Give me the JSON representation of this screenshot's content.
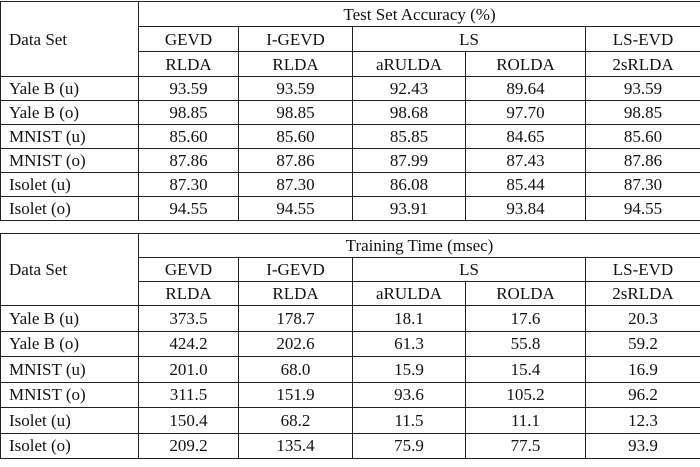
{
  "tables": [
    {
      "title": "Test Set Accuracy (%)",
      "row_header": "Data Set",
      "groups": [
        "GEVD",
        "I-GEVD",
        "LS",
        "LS-EVD"
      ],
      "methods": [
        "RLDA",
        "RLDA",
        "aRULDA",
        "ROLDA",
        "2sRLDA"
      ],
      "rows": [
        {
          "label": "Yale B (u)",
          "values": [
            "93.59",
            "93.59",
            "92.43",
            "89.64",
            "93.59"
          ]
        },
        {
          "label": "Yale B (o)",
          "values": [
            "98.85",
            "98.85",
            "98.68",
            "97.70",
            "98.85"
          ]
        },
        {
          "label": "MNIST (u)",
          "values": [
            "85.60",
            "85.60",
            "85.85",
            "84.65",
            "85.60"
          ]
        },
        {
          "label": "MNIST (o)",
          "values": [
            "87.86",
            "87.86",
            "87.99",
            "87.43",
            "87.86"
          ]
        },
        {
          "label": "Isolet (u)",
          "values": [
            "87.30",
            "87.30",
            "86.08",
            "85.44",
            "87.30"
          ]
        },
        {
          "label": "Isolet (o)",
          "values": [
            "94.55",
            "94.55",
            "93.91",
            "93.84",
            "94.55"
          ]
        }
      ]
    },
    {
      "title": "Training Time (msec)",
      "row_header": "Data Set",
      "groups": [
        "GEVD",
        "I-GEVD",
        "LS",
        "LS-EVD"
      ],
      "methods": [
        "RLDA",
        "RLDA",
        "aRULDA",
        "ROLDA",
        "2sRLDA"
      ],
      "rows": [
        {
          "label": "Yale B (u)",
          "values": [
            "373.5",
            "178.7",
            "18.1",
            "17.6",
            "20.3"
          ]
        },
        {
          "label": "Yale B (o)",
          "values": [
            "424.2",
            "202.6",
            "61.3",
            "55.8",
            "59.2"
          ]
        },
        {
          "label": "MNIST (u)",
          "values": [
            "201.0",
            "68.0",
            "15.9",
            "15.4",
            "16.9"
          ]
        },
        {
          "label": "MNIST (o)",
          "values": [
            "311.5",
            "151.9",
            "93.6",
            "105.2",
            "96.2"
          ]
        },
        {
          "label": "Isolet (u)",
          "values": [
            "150.4",
            "68.2",
            "11.5",
            "11.1",
            "12.3"
          ]
        },
        {
          "label": "Isolet (o)",
          "values": [
            "209.2",
            "135.4",
            "75.9",
            "77.5",
            "93.9"
          ]
        }
      ]
    }
  ]
}
